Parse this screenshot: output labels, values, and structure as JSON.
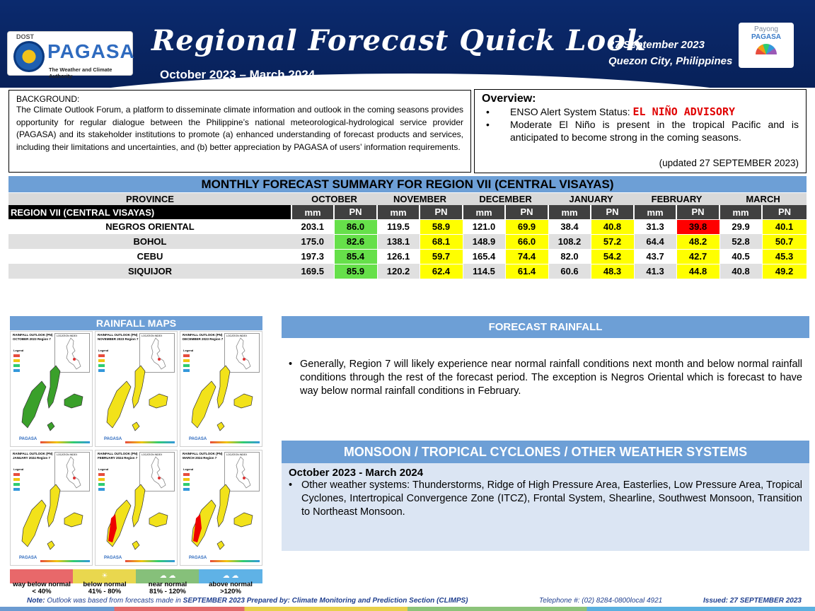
{
  "header": {
    "agency_short": "DOST",
    "logo_text": "PAGASA",
    "logo_sub": "The Weather and Climate Authority",
    "title": "Regional Forecast Quick Look",
    "period": "October 2023 – March 2024",
    "date": "27 September 2023",
    "place": "Quezon City, Philippines",
    "payong_top": "Payong",
    "payong_bottom": "PAGASA"
  },
  "background": {
    "heading": "BACKGROUND:",
    "text": "The Climate Outlook Forum, a platform to disseminate climate information and outlook in the coming seasons provides opportunity for regular dialogue between the Philippine’s national meteorological-hydrological service provider (PAGASA) and its stakeholder institutions to promote (a) enhanced understanding of forecast products and services, including their limitations and uncertainties, and (b) better appreciation by PAGASA of users’ information requirements."
  },
  "overview": {
    "heading": "Overview:",
    "enso_label": "ENSO Alert System Status: ",
    "enso_status": "EL NIÑO ADVISORY",
    "item2": "Moderate El Niño is present in the tropical Pacific and is anticipated to become strong in the coming seasons.",
    "updated": "(updated 27 SEPTEMBER 2023)"
  },
  "table": {
    "title": "MONTHLY FORECAST SUMMARY FOR REGION VII (CENTRAL VISAYAS)",
    "province_header": "PROVINCE",
    "region_label": "REGION VII (CENTRAL VISAYAS)",
    "months": [
      "OCTOBER",
      "NOVEMBER",
      "DECEMBER",
      "JANUARY",
      "FEBRUARY",
      "MARCH"
    ],
    "sub_mm": "mm",
    "sub_pn": "PN",
    "rows": [
      {
        "province": "NEGROS ORIENTAL",
        "mm": [
          "203.1",
          "119.5",
          "121.0",
          "38.4",
          "31.3",
          "29.9"
        ],
        "pn": [
          "86.0",
          "58.9",
          "69.9",
          "40.8",
          "39.8",
          "40.1"
        ],
        "cls": [
          "near",
          "below",
          "below",
          "below",
          "way",
          "below"
        ]
      },
      {
        "province": "BOHOL",
        "mm": [
          "175.0",
          "138.1",
          "148.9",
          "108.2",
          "64.4",
          "52.8"
        ],
        "pn": [
          "82.6",
          "68.1",
          "66.0",
          "57.2",
          "48.2",
          "50.7"
        ],
        "cls": [
          "near",
          "below",
          "below",
          "below",
          "below",
          "below"
        ]
      },
      {
        "province": "CEBU",
        "mm": [
          "197.3",
          "126.1",
          "165.4",
          "82.0",
          "43.7",
          "40.5"
        ],
        "pn": [
          "85.4",
          "59.7",
          "74.4",
          "54.2",
          "42.7",
          "45.3"
        ],
        "cls": [
          "near",
          "below",
          "below",
          "below",
          "below",
          "below"
        ]
      },
      {
        "province": "SIQUIJOR",
        "mm": [
          "169.5",
          "120.2",
          "114.5",
          "60.6",
          "41.3",
          "40.8"
        ],
        "pn": [
          "85.9",
          "62.4",
          "61.4",
          "48.3",
          "44.8",
          "49.2"
        ],
        "cls": [
          "near",
          "below",
          "below",
          "below",
          "below",
          "below"
        ]
      }
    ]
  },
  "colors": {
    "way": "#ff0000",
    "below": "#ffff00",
    "near": "#66e04a",
    "above": "#4aa3e0",
    "header_blue": "#6d9fd6"
  },
  "rainfall_maps": {
    "title": "RAINFALL MAPS",
    "legend_heading": "Legend",
    "location_label": "LOCATION INDEX",
    "logo": "PAGASA",
    "maps": [
      {
        "title": "RAINFALL OUTLOOK (PN) OCTOBER 2023 Region 7",
        "fill": "#3aa02a"
      },
      {
        "title": "RAINFALL OUTLOOK (PN) NOVEMBER 2023 Region 7",
        "fill": "#f2e21a"
      },
      {
        "title": "RAINFALL OUTLOOK (PN) DECEMBER 2023 Region 7",
        "fill": "#f2e21a"
      },
      {
        "title": "RAINFALL OUTLOOK (PN) JANUARY 2024 Region 7",
        "fill": "#f2e21a"
      },
      {
        "title": "RAINFALL OUTLOOK (PN) FEBRUARY 2024 Region 7",
        "fill": "#f2e21a"
      },
      {
        "title": "RAINFALL OUTLOOK (PN) MARCH 2024 Region 7",
        "fill": "#f2e21a"
      }
    ],
    "legend": [
      {
        "label": "way below normal",
        "range": "< 40%",
        "color": "#e8686a"
      },
      {
        "label": "below normal",
        "range": "41%  -  80%",
        "color": "#e9d74e"
      },
      {
        "label": "near normal",
        "range": "81% - 120%",
        "color": "#86c07a"
      },
      {
        "label": "above normal",
        "range": ">120%",
        "color": "#5fb2e6"
      }
    ]
  },
  "forecast_rainfall": {
    "title": "FORECAST RAINFALL",
    "text": "Generally, Region 7 will likely experience near normal rainfall conditions next month and below normal rainfall conditions through the rest of the forecast period. The exception is Negros Oriental which is forecast to have way below normal rainfall conditions in February."
  },
  "monsoon": {
    "title": "MONSOON / TROPICAL CYCLONES / OTHER WEATHER SYSTEMS",
    "period": "October 2023 - March 2024",
    "text": "Other weather systems: Thunderstorms,  Ridge of High Pressure Area,  Easterlies, Low Pressure Area, Tropical Cyclones, Intertropical Convergence Zone (ITCZ), Frontal System, Shearline, Southwest Monsoon, Transition to Northeast Monsoon."
  },
  "footer": {
    "note_label": "Note:",
    "note_text": " Outlook was based from forecasts made in ",
    "note_month": "SEPTEMBER 2023",
    "prepared": "  Prepared by: Climate Monitoring and Prediction Section (CLIMPS)",
    "telephone": "Telephone #: (02) 8284-0800local 4921",
    "issued": "Issued: 27 SEPTEMBER 2023"
  }
}
